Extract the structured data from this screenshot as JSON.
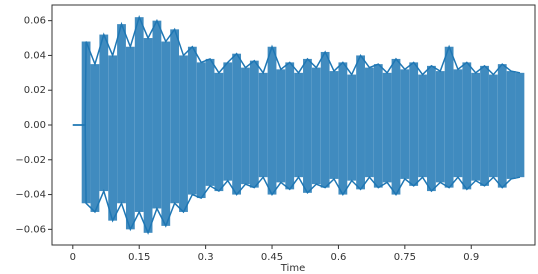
{
  "chart_data": {
    "type": "waveform",
    "xlabel": "Time",
    "x": [
      0,
      0.028,
      0.03,
      0.05,
      0.07,
      0.09,
      0.11,
      0.13,
      0.15,
      0.17,
      0.19,
      0.21,
      0.23,
      0.25,
      0.27,
      0.29,
      0.31,
      0.33,
      0.35,
      0.37,
      0.39,
      0.41,
      0.43,
      0.45,
      0.47,
      0.49,
      0.51,
      0.53,
      0.55,
      0.57,
      0.59,
      0.61,
      0.63,
      0.65,
      0.67,
      0.69,
      0.71,
      0.73,
      0.75,
      0.77,
      0.79,
      0.81,
      0.83,
      0.85,
      0.87,
      0.89,
      0.91,
      0.93,
      0.95,
      0.97,
      0.99,
      1.01
    ],
    "series": [
      {
        "color": "#1f77b4",
        "values": [
          0,
          0,
          0.048,
          0.035,
          0.052,
          0.04,
          0.058,
          0.045,
          0.062,
          0.05,
          0.06,
          0.048,
          0.055,
          0.04,
          0.045,
          0.036,
          0.038,
          0.03,
          0.036,
          0.041,
          0.033,
          0.037,
          0.03,
          0.045,
          0.032,
          0.036,
          0.03,
          0.038,
          0.033,
          0.042,
          0.031,
          0.036,
          0.029,
          0.04,
          0.033,
          0.035,
          0.03,
          0.038,
          0.032,
          0.036,
          0.029,
          0.034,
          0.031,
          0.045,
          0.032,
          0.036,
          0.03,
          0.034,
          0.029,
          0.035,
          0.031,
          0.03
        ]
      },
      {
        "color": "#1f77b4",
        "values": [
          0,
          0,
          -0.045,
          -0.05,
          -0.038,
          -0.055,
          -0.045,
          -0.06,
          -0.05,
          -0.062,
          -0.048,
          -0.058,
          -0.045,
          -0.05,
          -0.04,
          -0.042,
          -0.035,
          -0.038,
          -0.032,
          -0.04,
          -0.034,
          -0.036,
          -0.03,
          -0.04,
          -0.033,
          -0.037,
          -0.03,
          -0.039,
          -0.034,
          -0.036,
          -0.031,
          -0.04,
          -0.032,
          -0.037,
          -0.03,
          -0.036,
          -0.033,
          -0.04,
          -0.031,
          -0.035,
          -0.03,
          -0.038,
          -0.033,
          -0.036,
          -0.03,
          -0.037,
          -0.032,
          -0.035,
          -0.03,
          -0.036,
          -0.031,
          -0.03
        ]
      }
    ],
    "xlim": [
      -0.047,
      1.044
    ],
    "ylim": [
      -0.069,
      0.069
    ],
    "xticks": [
      0,
      0.15,
      0.3,
      0.45,
      0.6,
      0.75,
      0.9
    ],
    "yticks": [
      {
        "value": -0.06,
        "label": "−0.06"
      },
      {
        "value": -0.04,
        "label": "−0.04"
      },
      {
        "value": -0.02,
        "label": "−0.02"
      },
      {
        "value": 0,
        "label": "0.00"
      },
      {
        "value": 0.02,
        "label": "0.02"
      },
      {
        "value": 0.04,
        "label": "0.04"
      },
      {
        "value": 0.06,
        "label": "0.06"
      }
    ]
  }
}
